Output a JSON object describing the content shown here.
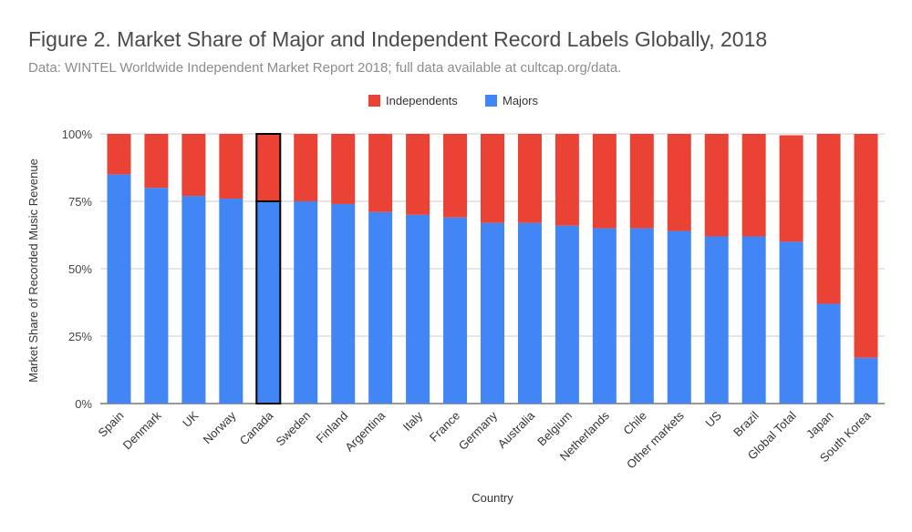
{
  "chart_data": {
    "type": "bar",
    "stacked": true,
    "title": "Figure 2. Market Share of Major and Independent Record Labels Globally, 2018",
    "subtitle": "Data: WINTEL Worldwide Independent Market Report 2018; full data available at cultcap.org/data.",
    "xlabel": "Country",
    "ylabel": "Market Share of Recorded Music Revenue",
    "ylim": [
      0,
      100
    ],
    "yticks": [
      "0%",
      "25%",
      "50%",
      "75%",
      "100%"
    ],
    "ytick_values": [
      0,
      25,
      50,
      75,
      100
    ],
    "grid": true,
    "legend_position": "top-center",
    "highlighted_category": "Canada",
    "categories": [
      "Spain",
      "Denmark",
      "UK",
      "Norway",
      "Canada",
      "Sweden",
      "Finland",
      "Argentina",
      "Italy",
      "France",
      "Germany",
      "Australia",
      "Belgium",
      "Netherlands",
      "Chile",
      "Other markets",
      "US",
      "Brazil",
      "Global Total",
      "Japan",
      "South Korea"
    ],
    "series": [
      {
        "name": "Majors",
        "color": "#4285f4",
        "values": [
          85,
          80,
          77,
          76,
          75,
          75,
          74,
          71,
          70,
          69,
          67,
          67,
          66,
          65,
          65,
          64,
          62,
          62,
          60,
          37,
          17
        ]
      },
      {
        "name": "Independents",
        "color": "#ea4335",
        "values": [
          15,
          20,
          23,
          24,
          25,
          25,
          26,
          29,
          30,
          31,
          33,
          33,
          34,
          35,
          35,
          36,
          38,
          38,
          39.5,
          63,
          83
        ]
      }
    ],
    "legend_order": [
      "Independents",
      "Majors"
    ]
  }
}
